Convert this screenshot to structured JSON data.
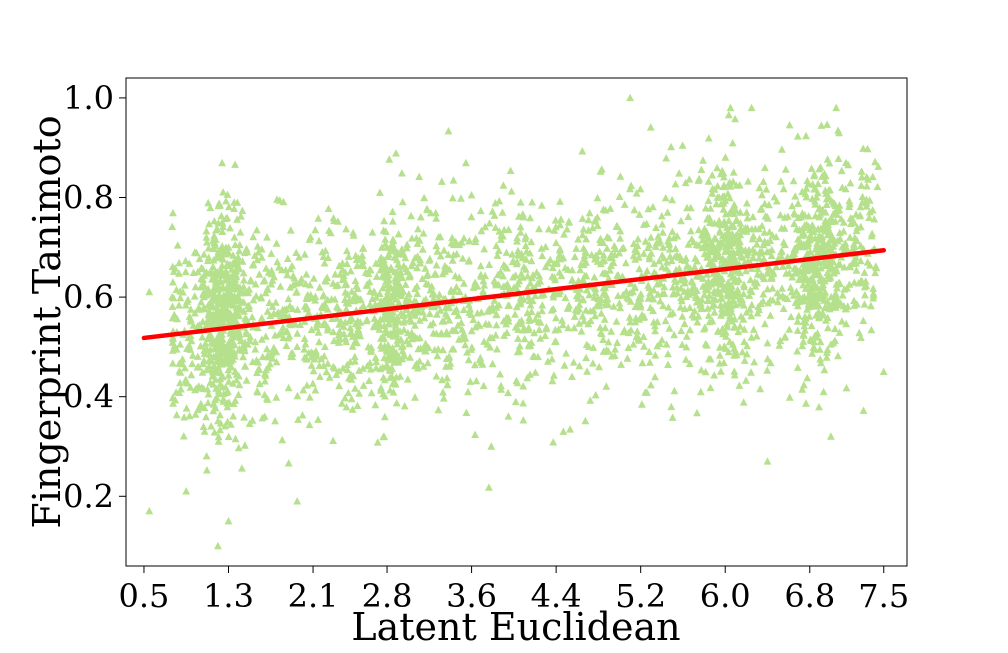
{
  "chart_data": {
    "type": "scatter",
    "title": "",
    "xlabel": "Latent Euclidean",
    "ylabel": "Fingerprint Tanimoto",
    "xlim": [
      0.33,
      7.72
    ],
    "ylim": [
      0.06,
      1.04
    ],
    "x_ticks": [
      "0.5",
      "1.3",
      "2.1",
      "2.8",
      "3.6",
      "4.4",
      "5.2",
      "6.0",
      "6.8",
      "7.5"
    ],
    "y_ticks": [
      "0.2",
      "0.4",
      "0.6",
      "0.8",
      "1.0"
    ],
    "grid": false,
    "marker": "triangle",
    "colors": {
      "points": "#b5e08c",
      "fit_line": "#ff0000"
    },
    "series": [
      {
        "kind": "points",
        "clusters": [
          {
            "x_center": 1.25,
            "x_spread": 0.12,
            "y_center": 0.56,
            "y_spread": 0.11,
            "count": 380
          },
          {
            "x_center": 2.85,
            "x_spread": 0.1,
            "y_center": 0.56,
            "y_spread": 0.1,
            "count": 170
          },
          {
            "x_center": 6.0,
            "x_spread": 0.1,
            "y_center": 0.66,
            "y_spread": 0.1,
            "count": 240
          },
          {
            "x_center": 6.85,
            "x_spread": 0.12,
            "y_center": 0.66,
            "y_spread": 0.1,
            "count": 260
          }
        ],
        "background": {
          "x_range": [
            0.5,
            7.5
          ],
          "count": 2200,
          "y_spread": 0.1,
          "fit": "linear"
        },
        "outliers": [
          {
            "x": 0.55,
            "y": 0.17
          },
          {
            "x": 0.55,
            "y": 0.61
          },
          {
            "x": 0.9,
            "y": 0.21
          },
          {
            "x": 1.2,
            "y": 0.1
          },
          {
            "x": 1.3,
            "y": 0.15
          },
          {
            "x": 1.95,
            "y": 0.19
          },
          {
            "x": 5.1,
            "y": 1.0
          },
          {
            "x": 6.05,
            "y": 0.98
          },
          {
            "x": 6.25,
            "y": 0.98
          },
          {
            "x": 7.05,
            "y": 0.98
          },
          {
            "x": 6.4,
            "y": 0.27
          },
          {
            "x": 7.0,
            "y": 0.32
          },
          {
            "x": 7.5,
            "y": 0.45
          }
        ]
      },
      {
        "kind": "fit_line",
        "x": [
          0.5,
          7.5
        ],
        "y": [
          0.518,
          0.694
        ]
      }
    ]
  }
}
